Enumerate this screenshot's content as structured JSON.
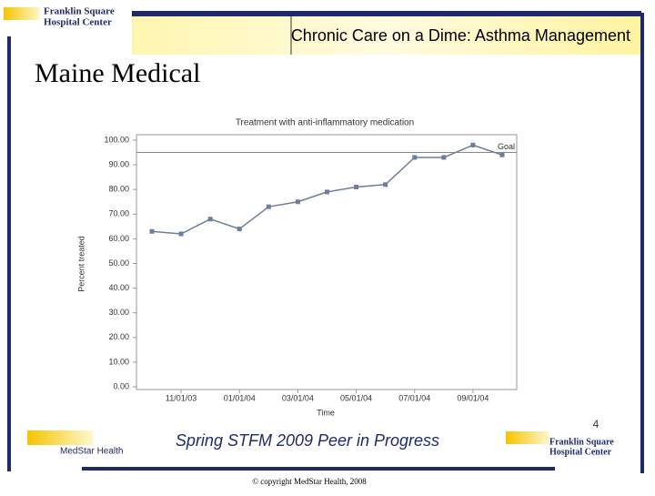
{
  "header": {
    "title": "Chronic Care on a Dime: Asthma Management",
    "logo_line1": "Franklin Square",
    "logo_line2": "Hospital Center"
  },
  "slide_title": "Maine Medical",
  "chart_data": {
    "type": "line",
    "title": "Treatment with anti-inflammatory medication",
    "x_label": "Time",
    "y_label": "Percent treated",
    "categories": [
      null,
      "11/01/03",
      null,
      "01/01/04",
      null,
      "03/01/04",
      null,
      "05/01/04",
      null,
      "07/01/04",
      null,
      "09/01/04",
      null
    ],
    "values": [
      63,
      62,
      68,
      64,
      73,
      75,
      79,
      81,
      82,
      93,
      93,
      98,
      94
    ],
    "color": "#6c7f99",
    "ylim": [
      0,
      100
    ],
    "yticks": [
      {
        "value": 0,
        "label": "0.00"
      },
      {
        "value": 10,
        "label": "10.00"
      },
      {
        "value": 20,
        "label": "20.00"
      },
      {
        "value": 30,
        "label": "30.00"
      },
      {
        "value": 40,
        "label": "40.00"
      },
      {
        "value": 50,
        "label": "50.00"
      },
      {
        "value": 60,
        "label": "60.00"
      },
      {
        "value": 70,
        "label": "70.00"
      },
      {
        "value": 80,
        "label": "80.00"
      },
      {
        "value": 90,
        "label": "90.00"
      },
      {
        "value": 100,
        "label": "100.00"
      }
    ],
    "goal": {
      "value": 95,
      "label": "Goal"
    }
  },
  "footer": {
    "text": "Spring STFM 2009 Peer in Progress",
    "page_number": "4",
    "copyright": "© copyright MedStar Health, 2008",
    "medstar": "MedStar Health",
    "logo_line1": "Franklin Square",
    "logo_line2": "Hospital Center"
  }
}
